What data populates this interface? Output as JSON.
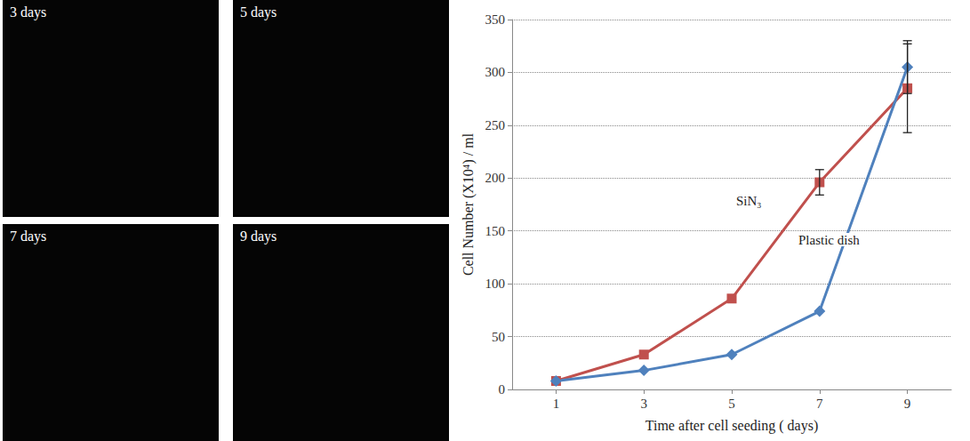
{
  "panels": [
    {
      "label": "3 days"
    },
    {
      "label": "5 days"
    },
    {
      "label": "7 days"
    },
    {
      "label": "9 days"
    }
  ],
  "chart_data": {
    "type": "line",
    "x_label": "Time after cell seeding ( days)",
    "y_label": "Cell Number (X10⁴) / ml",
    "categories": [
      "1",
      "3",
      "5",
      "7",
      "9"
    ],
    "series": [
      {
        "name": "SiN₃",
        "color": "#c0504d",
        "marker": "square",
        "values": [
          8,
          33,
          86,
          196,
          285
        ],
        "errors": [
          null,
          null,
          null,
          12,
          42
        ]
      },
      {
        "name": "Plastic dish",
        "color": "#4f81bd",
        "marker": "diamond",
        "values": [
          8,
          18,
          33,
          74,
          305
        ],
        "errors": [
          null,
          null,
          null,
          null,
          25
        ]
      }
    ],
    "ylim": [
      0,
      350
    ],
    "yticks": [
      0,
      50,
      100,
      150,
      200,
      250,
      300,
      350
    ],
    "grid": true
  }
}
